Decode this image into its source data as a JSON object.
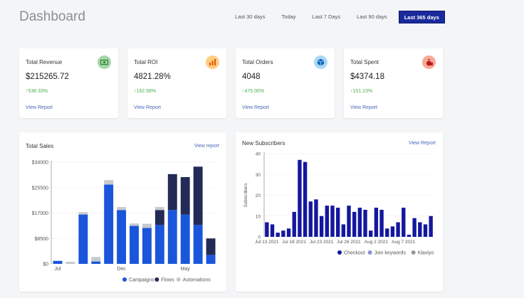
{
  "header": {
    "title": "Dashboard",
    "ranges": [
      "Last 30 days",
      "Today",
      "Last 7 Days",
      "Last 90 days",
      "Last 365 days"
    ],
    "active_range": "Last 365 days"
  },
  "stats": [
    {
      "label": "Total Revenue",
      "value": "$215265.72",
      "delta": "538.33%",
      "link": "View Report",
      "icon": "money-icon",
      "icon_bg": "#a5d6a7",
      "icon_fg": "#2e7d32"
    },
    {
      "label": "Total ROI",
      "value": "4821.28%",
      "delta": "162.58%",
      "link": "View Report",
      "icon": "bar-chart-icon",
      "icon_bg": "#ffcc80",
      "icon_fg": "#e65100"
    },
    {
      "label": "Total Orders",
      "value": "4048",
      "delta": "475.00%",
      "link": "View Report",
      "icon": "box-icon",
      "icon_bg": "#a9d8f5",
      "icon_fg": "#1565c0"
    },
    {
      "label": "Total Spent",
      "value": "$4374.18",
      "delta": "151.23%",
      "link": "View Report",
      "icon": "money-bag-icon",
      "icon_bg": "#f8a896",
      "icon_fg": "#b71c1c"
    }
  ],
  "sales_panel": {
    "title": "Total Sales",
    "link": "View report"
  },
  "subs_panel": {
    "title": "New Subscribers",
    "link": "View Report"
  },
  "colors": {
    "campaigns": "#1a56db",
    "flows": "#222a55",
    "automations": "#c6c9ce",
    "checkout": "#14179e",
    "join": "#8c8fd1",
    "klaviyo": "#9a9a9a",
    "accent": "#1a2a9c",
    "positive": "#4caf50"
  },
  "chart_data": [
    {
      "type": "bar",
      "stacked": true,
      "x_ticks": [
        "Jul",
        "Dec",
        "May"
      ],
      "y_ticks": [
        "$0",
        "$8500",
        "$17000",
        "$25500",
        "$34000"
      ],
      "ylim": [
        0,
        34000
      ],
      "series": [
        {
          "name": "Campaigns",
          "values": [
            1000,
            0,
            16500,
            800,
            26500,
            18000,
            12700,
            12000,
            13000,
            18000,
            16500,
            13000,
            3000
          ]
        },
        {
          "name": "Flows",
          "values": [
            0,
            0,
            0,
            0,
            0,
            0,
            0,
            0,
            5000,
            12000,
            12500,
            19500,
            5500
          ]
        },
        {
          "name": "Automations",
          "values": [
            0,
            700,
            800,
            1500,
            1500,
            1000,
            800,
            1400,
            1000,
            0,
            0,
            0,
            0
          ]
        }
      ],
      "legend_position": "bottom-right"
    },
    {
      "type": "bar",
      "ylabel": "Subscribers",
      "ylim": [
        0,
        40
      ],
      "y_ticks": [
        "0",
        "10",
        "20",
        "30",
        "40"
      ],
      "x_ticks": [
        "Jul 13 2021",
        "Jul 18 2021",
        "Jul 23 2021",
        "Jul 28 2021",
        "Aug 2 2021",
        "Aug 7 2021"
      ],
      "series": [
        {
          "name": "Checkout",
          "values": [
            7,
            6,
            2,
            3,
            4,
            12,
            37,
            36,
            17,
            18,
            10,
            15,
            15,
            14,
            6,
            15,
            12,
            14,
            13,
            3,
            14,
            13,
            4,
            5,
            7,
            14,
            1,
            9,
            7,
            6,
            10
          ]
        },
        {
          "name": "Join keywords",
          "values": []
        },
        {
          "name": "Klaviyo",
          "values": []
        }
      ],
      "legend_position": "bottom-center"
    }
  ]
}
